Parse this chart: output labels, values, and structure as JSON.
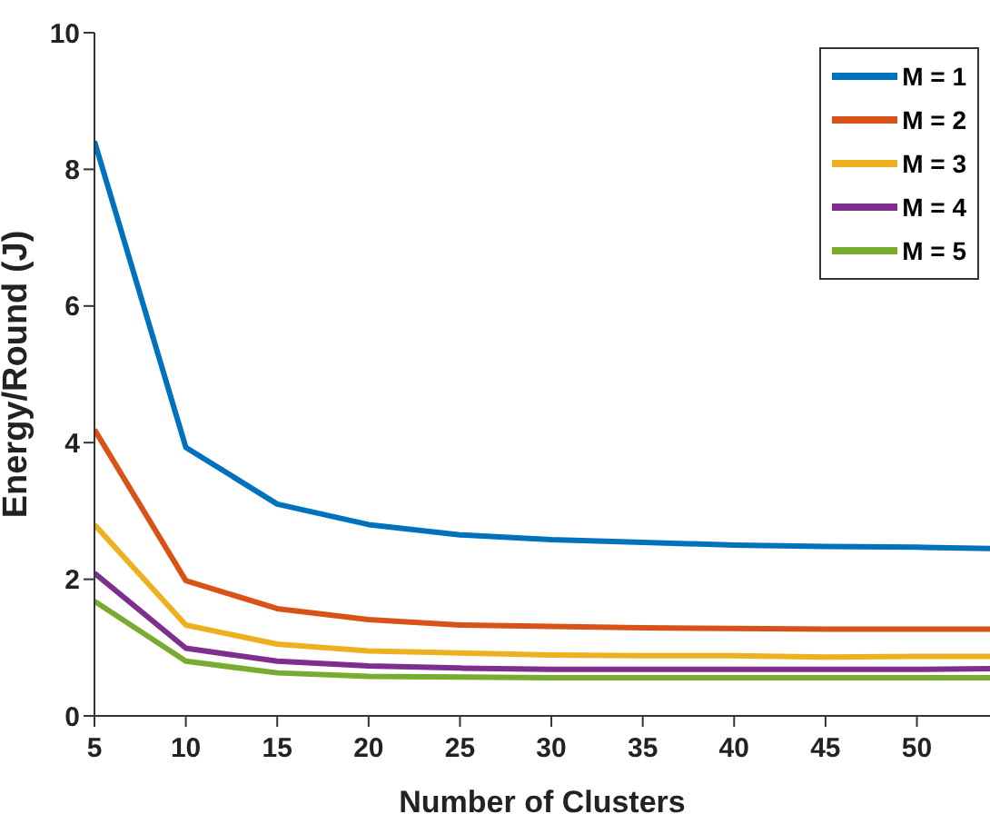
{
  "chart_data": {
    "type": "line",
    "xlabel": "Number of Clusters",
    "ylabel": "Energy/Round (J)",
    "x": [
      5,
      10,
      15,
      20,
      25,
      30,
      35,
      40,
      45,
      50,
      54
    ],
    "series": [
      {
        "name": "M = 1",
        "color": "#0072bd",
        "values": [
          8.41,
          3.93,
          3.1,
          2.8,
          2.65,
          2.58,
          2.54,
          2.5,
          2.48,
          2.47,
          2.45
        ]
      },
      {
        "name": "M = 2",
        "color": "#d95319",
        "values": [
          4.19,
          1.98,
          1.57,
          1.41,
          1.33,
          1.31,
          1.29,
          1.28,
          1.27,
          1.27,
          1.27
        ]
      },
      {
        "name": "M = 3",
        "color": "#edb120",
        "values": [
          2.8,
          1.33,
          1.05,
          0.95,
          0.92,
          0.89,
          0.88,
          0.88,
          0.86,
          0.87,
          0.87
        ]
      },
      {
        "name": "M = 4",
        "color": "#7e2f8e",
        "values": [
          2.09,
          0.99,
          0.8,
          0.73,
          0.7,
          0.68,
          0.68,
          0.68,
          0.68,
          0.68,
          0.69
        ]
      },
      {
        "name": "M = 5",
        "color": "#77ac30",
        "values": [
          1.68,
          0.8,
          0.63,
          0.58,
          0.57,
          0.56,
          0.56,
          0.56,
          0.56,
          0.56,
          0.56
        ]
      }
    ],
    "xlim": [
      5,
      54
    ],
    "xticks": [
      5,
      10,
      15,
      20,
      25,
      30,
      35,
      40,
      45,
      50
    ],
    "ylim": [
      0,
      10
    ],
    "yticks": [
      0,
      2,
      4,
      6,
      8,
      10
    ],
    "grid": false,
    "legend": "top right",
    "marker": "none",
    "line_style": "solid"
  }
}
